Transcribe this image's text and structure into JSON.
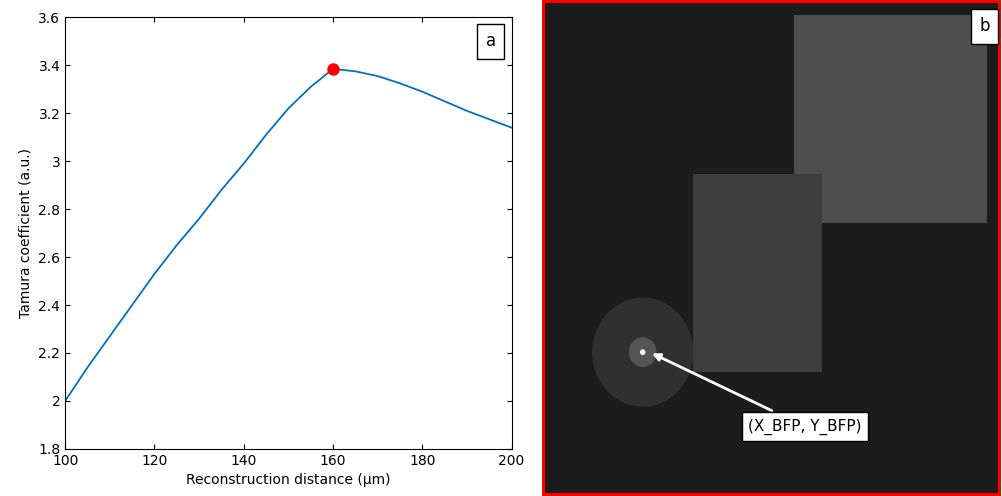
{
  "chart_data": {
    "type": "line",
    "panel_label": "a",
    "x_label": "Reconstruction distance (μm)",
    "y_label": "Tamura coefficient (a.u.)",
    "x": [
      100,
      105,
      110,
      115,
      120,
      125,
      130,
      135,
      140,
      145,
      150,
      155,
      160,
      165,
      170,
      175,
      180,
      185,
      190,
      195,
      200
    ],
    "values": [
      2.0,
      2.14,
      2.27,
      2.4,
      2.53,
      2.65,
      2.76,
      2.88,
      2.99,
      3.11,
      3.22,
      3.31,
      3.385,
      3.375,
      3.355,
      3.325,
      3.29,
      3.25,
      3.21,
      3.175,
      3.14
    ],
    "color": "#0072bd",
    "peak": {
      "x": 160,
      "y": 3.385,
      "color": "#ff0000",
      "marker": "o"
    },
    "xlim": [
      100,
      200
    ],
    "xticks": [
      100,
      120,
      140,
      160,
      180,
      200
    ],
    "ylim": [
      1.8,
      3.6
    ],
    "yticks": [
      1.8,
      2,
      2.2,
      2.4,
      2.6,
      2.8,
      3,
      3.2,
      3.4,
      3.6
    ],
    "grid": false
  },
  "image_panel": {
    "panel_label": "b",
    "annotation": "(X_BFP, Y_BFP)",
    "frame_color": "#ff0000"
  }
}
